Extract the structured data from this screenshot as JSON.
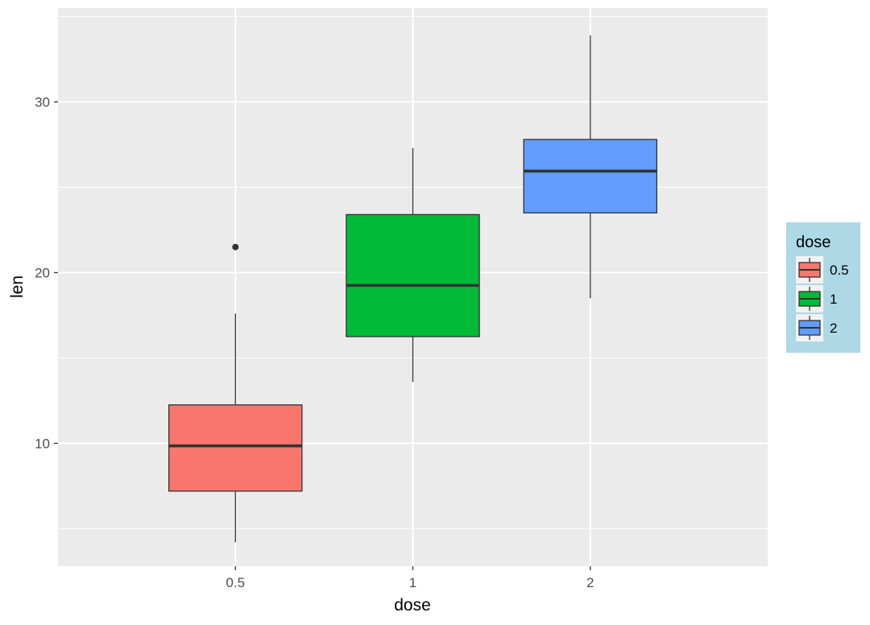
{
  "chart_data": {
    "type": "box",
    "xlabel": "dose",
    "ylabel": "len",
    "categories": [
      "0.5",
      "1",
      "2"
    ],
    "ylim": [
      2.8,
      35.5
    ],
    "yticks": [
      10,
      20,
      30
    ],
    "grid": true,
    "boxes": [
      {
        "category": "0.5",
        "color": "#F8766D",
        "whisker_low": 4.2,
        "q1": 7.2,
        "median": 9.85,
        "q3": 12.25,
        "whisker_high": 17.6,
        "outliers": [
          21.5
        ]
      },
      {
        "category": "1",
        "color": "#00BA38",
        "whisker_low": 13.6,
        "q1": 16.25,
        "median": 19.25,
        "q3": 23.4,
        "whisker_high": 27.3,
        "outliers": []
      },
      {
        "category": "2",
        "color": "#619CFF",
        "whisker_low": 18.5,
        "q1": 23.5,
        "median": 25.95,
        "q3": 27.8,
        "whisker_high": 33.9,
        "outliers": []
      }
    ],
    "legend": {
      "title": "dose",
      "placement": "right",
      "background": "#ADD8E6",
      "entries": [
        {
          "label": "0.5",
          "color": "#F8766D"
        },
        {
          "label": "1",
          "color": "#00BA38"
        },
        {
          "label": "2",
          "color": "#619CFF"
        }
      ]
    }
  }
}
